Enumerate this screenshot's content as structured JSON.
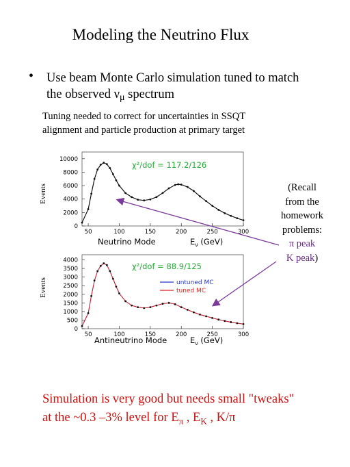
{
  "slide": {
    "title": "Modeling the Neutrino Flux",
    "bullet_line1": "Use beam Monte Carlo simulation tuned to match",
    "bullet_line2_pre": "the observed ",
    "bullet_nu": "ν",
    "bullet_mu": "μ",
    "bullet_line2_post": " spectrum",
    "note_line1": "Tuning needed to correct for uncertainties in SSQT",
    "note_line2": "alignment and particle production at primary target",
    "recall": {
      "line1": "(Recall",
      "line2": "from the",
      "line3": "homework",
      "line4": "problems:",
      "line5": "π peak",
      "line6": "K peak",
      "line6_close": ")"
    },
    "conclusion_line1": "Simulation is very good but needs small \"tweaks\"",
    "conclusion_line2_pre": "at the ~0.3 –3% level for E",
    "conclusion_pi": "π",
    "conclusion_mid": " , E",
    "conclusion_K": "K",
    "conclusion_end": " , K/π"
  },
  "colors": {
    "data": "#111111",
    "untuned": "#2233cc",
    "tuned": "#dd2222",
    "chi2_text": "#22aa33",
    "arrow": "#7a3a9a",
    "conclusion": "#cc1111"
  },
  "chart_data": [
    {
      "type": "line",
      "ylabel": "Events",
      "mode_label": "Neutrino Mode",
      "xlabel_main": "E",
      "xlabel_sub": "ν",
      "xlabel_unit": " (GeV)",
      "chi2_label": "χ²/dof = 117.2/126",
      "xlim": [
        40,
        300
      ],
      "ylim": [
        0,
        11000
      ],
      "xticks": [
        50,
        100,
        150,
        200,
        250,
        300
      ],
      "yticks": [
        0,
        2000,
        4000,
        6000,
        8000,
        10000
      ],
      "x": [
        40,
        50,
        55,
        60,
        65,
        70,
        75,
        80,
        85,
        90,
        95,
        100,
        110,
        120,
        130,
        140,
        150,
        160,
        170,
        180,
        190,
        195,
        200,
        210,
        220,
        230,
        240,
        250,
        260,
        270,
        280,
        290,
        300
      ],
      "series": [
        {
          "values": [
            500,
            2500,
            4800,
            7000,
            8400,
            9100,
            9400,
            9200,
            8600,
            7700,
            6800,
            6000,
            4900,
            4300,
            3900,
            3800,
            3950,
            4300,
            4900,
            5600,
            6100,
            6200,
            6150,
            5800,
            5200,
            4400,
            3700,
            3000,
            2400,
            1900,
            1500,
            1150,
            850
          ]
        }
      ]
    },
    {
      "type": "line",
      "ylabel": "Events",
      "mode_label": "Antineutrino Mode",
      "xlabel_main": "E",
      "xlabel_sub": "ν",
      "xlabel_unit": " (GeV)",
      "chi2_label": "χ²/dof = 88.9/125",
      "legend": {
        "position": "top-right",
        "entries": [
          "untuned MC",
          "tuned MC"
        ]
      },
      "xlim": [
        40,
        300
      ],
      "ylim": [
        0,
        4300
      ],
      "xticks": [
        50,
        100,
        150,
        200,
        250,
        300
      ],
      "yticks": [
        0,
        500,
        1000,
        1500,
        2000,
        2500,
        3000,
        3500,
        4000
      ],
      "x": [
        40,
        50,
        55,
        60,
        65,
        70,
        75,
        80,
        85,
        90,
        95,
        100,
        110,
        120,
        130,
        140,
        150,
        160,
        170,
        180,
        190,
        200,
        210,
        220,
        230,
        240,
        250,
        260,
        270,
        280,
        290,
        300
      ],
      "series": [
        {
          "values": [
            150,
            900,
            1900,
            2800,
            3350,
            3650,
            3800,
            3700,
            3350,
            2900,
            2450,
            2050,
            1600,
            1350,
            1250,
            1200,
            1250,
            1350,
            1450,
            1500,
            1420,
            1250,
            1100,
            950,
            820,
            720,
            620,
            530,
            450,
            380,
            320,
            270
          ]
        }
      ]
    }
  ]
}
